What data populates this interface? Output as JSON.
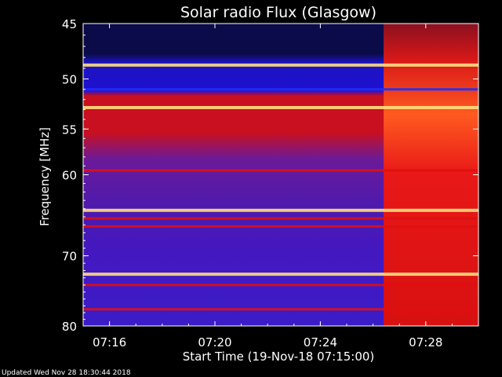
{
  "chart_data": {
    "type": "heatmap",
    "title": "Solar radio Flux (Glasgow)",
    "xlabel": "Start Time (19-Nov-18 07:15:00)",
    "ylabel": "Frequency [MHz]",
    "x_ticks": [
      "07:16",
      "07:20",
      "07:24",
      "07:28"
    ],
    "x_tick_minutes": [
      1,
      5,
      9,
      13
    ],
    "x_range_minutes": [
      0,
      15
    ],
    "y_ticks": [
      45,
      50,
      55,
      60,
      70,
      80
    ],
    "y_range_mhz": [
      45,
      80
    ],
    "y_scale": "log",
    "event_onset_minutes": 11.4,
    "bands": [
      {
        "mhz": 48.7,
        "kind": "bright"
      },
      {
        "mhz": 51.0,
        "kind": "blue"
      },
      {
        "mhz": 52.8,
        "kind": "bright"
      },
      {
        "mhz": 59.5,
        "kind": "red"
      },
      {
        "mhz": 64.2,
        "kind": "bright"
      },
      {
        "mhz": 65.2,
        "kind": "red"
      },
      {
        "mhz": 66.2,
        "kind": "red"
      },
      {
        "mhz": 72.5,
        "kind": "bright"
      },
      {
        "mhz": 74.0,
        "kind": "red"
      },
      {
        "mhz": 77.5,
        "kind": "red"
      }
    ],
    "colors": {
      "background": "#000000",
      "low": "#0a0a66",
      "mid": "#2b1ab8",
      "purple": "#551a99",
      "red": "#e01010",
      "bright": "#ffe080"
    }
  },
  "footer": "Updated Wed Nov 28 18:30:44 2018"
}
